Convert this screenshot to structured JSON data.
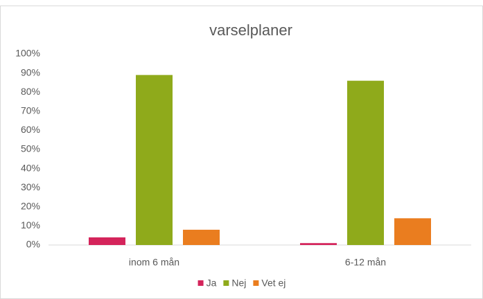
{
  "chart_data": {
    "type": "bar",
    "title": "varselplaner",
    "categories": [
      "inom 6 mån",
      "6-12 mån"
    ],
    "series": [
      {
        "name": "Ja",
        "color": "#d4245b",
        "values": [
          4,
          1
        ]
      },
      {
        "name": "Nej",
        "color": "#8faa1b",
        "values": [
          89,
          86
        ]
      },
      {
        "name": "Vet ej",
        "color": "#ea7d1f",
        "values": [
          8,
          14
        ]
      }
    ],
    "ylim": [
      0,
      100
    ],
    "yticks": [
      {
        "value": 0,
        "label": "0%"
      },
      {
        "value": 10,
        "label": "10%"
      },
      {
        "value": 20,
        "label": "20%"
      },
      {
        "value": 30,
        "label": "30%"
      },
      {
        "value": 40,
        "label": "40%"
      },
      {
        "value": 50,
        "label": "50%"
      },
      {
        "value": 60,
        "label": "60%"
      },
      {
        "value": 70,
        "label": "70%"
      },
      {
        "value": 80,
        "label": "80%"
      },
      {
        "value": 90,
        "label": "90%"
      },
      {
        "value": 100,
        "label": "100%"
      }
    ],
    "grid": false,
    "legend": "bottom"
  }
}
